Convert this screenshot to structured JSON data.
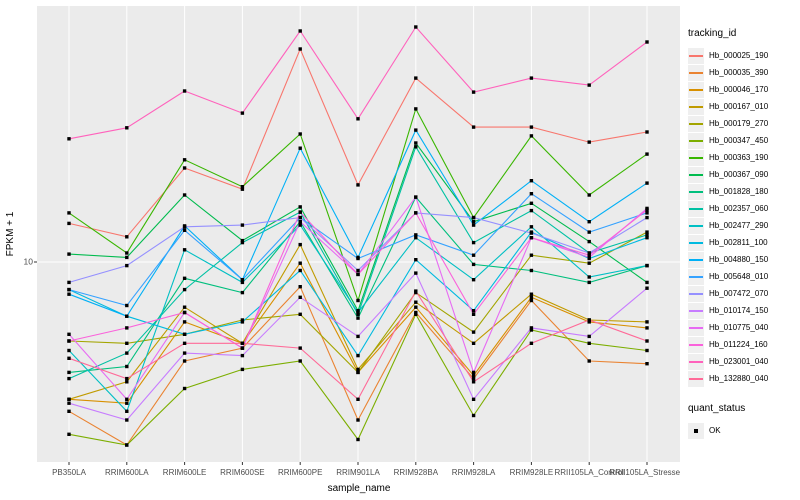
{
  "chart_data": {
    "type": "line",
    "title": "",
    "xlabel": "sample_name",
    "ylabel": "FPKM + 1",
    "y_scale": "log10",
    "ytick_label": "10",
    "ytick_value": 10,
    "ylim": [
      1.8,
      89
    ],
    "grid": true,
    "point_shape": "black-square",
    "categories": [
      "PB350LA",
      "RRIM600LA",
      "RRIM600LE",
      "RRIM600SE",
      "RRIM600PE",
      "RRIM901LA",
      "RRIM928BA",
      "RRIM928LA",
      "RRIM928LE",
      "RRII105LA_Control",
      "RRII105LA_Stressed"
    ],
    "series": [
      {
        "name": "Hb_000025_190",
        "color": "#F8766D",
        "values": [
          13.9,
          12.4,
          22.3,
          18.6,
          61.5,
          19.3,
          48.0,
          31.6,
          31.6,
          27.8,
          30.3
        ]
      },
      {
        "name": "Hb_000035_390",
        "color": "#EA8331",
        "values": [
          2.8,
          2.1,
          4.3,
          4.8,
          8.1,
          2.6,
          6.5,
          3.7,
          7.2,
          4.3,
          4.2
        ]
      },
      {
        "name": "Hb_000046_170",
        "color": "#D89000",
        "values": [
          3.1,
          3.0,
          6.0,
          5.0,
          9.9,
          3.9,
          6.8,
          3.8,
          7.4,
          6.0,
          5.7
        ]
      },
      {
        "name": "Hb_000167_010",
        "color": "#C09B00",
        "values": [
          3.1,
          3.6,
          6.8,
          5.0,
          11.6,
          4.0,
          7.1,
          5.0,
          7.6,
          6.1,
          6.0
        ]
      },
      {
        "name": "Hb_000179_270",
        "color": "#A3A500",
        "values": [
          5.1,
          5.0,
          5.4,
          6.1,
          6.4,
          3.9,
          7.7,
          5.5,
          10.6,
          9.9,
          12.9
        ]
      },
      {
        "name": "Hb_000347_450",
        "color": "#7CAE00",
        "values": [
          2.3,
          2.1,
          3.4,
          4.0,
          4.3,
          2.2,
          6.4,
          2.7,
          5.6,
          5.0,
          4.7
        ]
      },
      {
        "name": "Hb_000363_190",
        "color": "#39B600",
        "values": [
          15.2,
          10.8,
          23.9,
          19.0,
          29.8,
          7.2,
          36.9,
          14.6,
          29.3,
          17.7,
          25.1
        ]
      },
      {
        "name": "Hb_000367_090",
        "color": "#00BB4E",
        "values": [
          10.7,
          10.4,
          17.7,
          12.0,
          16.0,
          6.6,
          27.6,
          14.1,
          16.5,
          11.9,
          8.4
        ]
      },
      {
        "name": "Hb_001828_180",
        "color": "#00BF7D",
        "values": [
          3.9,
          4.1,
          8.7,
          7.7,
          14.1,
          6.2,
          17.4,
          9.8,
          9.3,
          8.4,
          9.7
        ]
      },
      {
        "name": "Hb_002357_060",
        "color": "#00C1A3",
        "values": [
          3.7,
          4.6,
          7.9,
          11.8,
          15.3,
          6.4,
          26.7,
          11.8,
          15.5,
          10.8,
          12.6
        ]
      },
      {
        "name": "Hb_002477_290",
        "color": "#00BFC4",
        "values": [
          4.7,
          2.8,
          11.1,
          8.4,
          13.7,
          6.5,
          12.3,
          8.6,
          13.5,
          8.8,
          9.7
        ]
      },
      {
        "name": "Hb_002811_100",
        "color": "#00BAE0",
        "values": [
          7.9,
          6.3,
          5.4,
          6.0,
          9.3,
          4.5,
          10.2,
          6.6,
          12.9,
          10.3,
          12.3
        ]
      },
      {
        "name": "Hb_004880_150",
        "color": "#00B0F6",
        "values": [
          7.6,
          6.3,
          13.6,
          8.6,
          26.4,
          10.4,
          30.8,
          13.7,
          20.0,
          14.1,
          19.6
        ]
      },
      {
        "name": "Hb_005648_010",
        "color": "#35A2FF",
        "values": [
          7.9,
          6.9,
          13.1,
          8.6,
          14.6,
          10.3,
          12.6,
          10.6,
          17.9,
          12.9,
          15.2
        ]
      },
      {
        "name": "Hb_007472_070",
        "color": "#9590FF",
        "values": [
          8.4,
          9.7,
          13.5,
          13.7,
          14.6,
          9.3,
          15.2,
          14.6,
          12.8,
          10.8,
          14.6
        ]
      },
      {
        "name": "Hb_010174_150",
        "color": "#C77CFF",
        "values": [
          3.0,
          2.6,
          4.6,
          4.5,
          7.4,
          5.3,
          9.1,
          3.1,
          5.7,
          5.3,
          8.0
        ]
      },
      {
        "name": "Hb_010775_040",
        "color": "#E76BF3",
        "values": [
          5.4,
          3.1,
          6.5,
          4.8,
          14.1,
          9.0,
          17.4,
          3.9,
          12.3,
          10.4,
          15.8
        ]
      },
      {
        "name": "Hb_011224_160",
        "color": "#FA62DB",
        "values": [
          5.1,
          5.7,
          6.5,
          4.8,
          15.3,
          9.0,
          15.2,
          6.4,
          12.3,
          10.6,
          15.6
        ]
      },
      {
        "name": "Hb_023001_040",
        "color": "#FF62BC",
        "values": [
          28.6,
          31.4,
          43.0,
          35.6,
          71.7,
          33.9,
          74.2,
          42.6,
          48.0,
          45.2,
          65.3
        ]
      },
      {
        "name": "Hb_132880_040",
        "color": "#FF6A98",
        "values": [
          4.4,
          3.7,
          5.0,
          5.0,
          4.8,
          3.1,
          7.8,
          3.6,
          5.0,
          6.1,
          5.1
        ]
      }
    ],
    "legend": {
      "color_legend_title": "tracking_id",
      "shape_legend_title": "quant_status",
      "shape_legend_items": [
        "OK"
      ],
      "position": "right"
    },
    "panel_color": "#EBEBEB",
    "gridline_color": "#FFFFFF",
    "tick_text_color": "#4D4D4D"
  }
}
